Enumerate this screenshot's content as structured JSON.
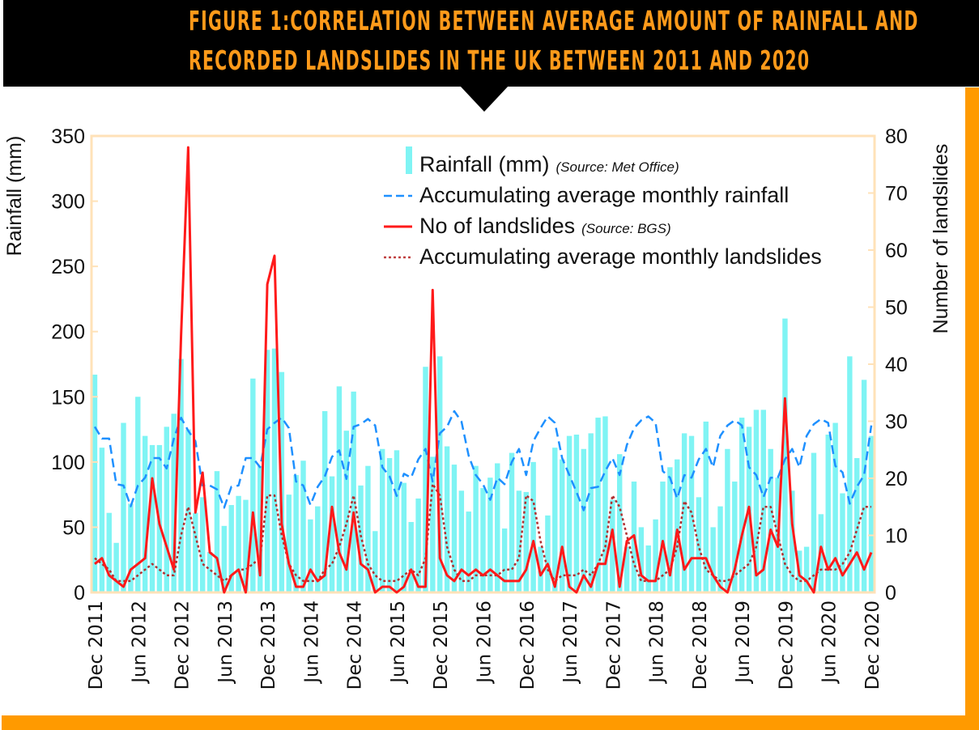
{
  "header": {
    "title_line1": "FIGURE 1:CORRELATION BETWEEN AVERAGE AMOUNT OF RAINFALL AND",
    "title_line2": "RECORDED LANDSLIDES IN THE UK BETWEEN 2011 AND 2020"
  },
  "colors": {
    "title_text": "#ff9a1a",
    "title_bg": "#000000",
    "accent_frame": "#ff9a00",
    "bars": "#7ff4f4",
    "avg_rainfall_line": "#1e90ff",
    "landslides_line": "#ff1a1a",
    "avg_landslides_line": "#b03030",
    "axis_frame": "#ffe2b8"
  },
  "chart_data": {
    "type": "bar+line",
    "title": "Figure 1: Correlation between average amount of rainfall and recorded landslides in the UK between 2011 and 2020",
    "xlabel": "",
    "ylabel": "Rainfall (mm)",
    "y2label": "Number of landslides",
    "ylim": [
      0,
      350
    ],
    "y2lim": [
      0,
      80
    ],
    "yticks": [
      "0",
      "50",
      "100",
      "150",
      "200",
      "250",
      "300",
      "350"
    ],
    "y2ticks": [
      "0",
      "10",
      "20",
      "30",
      "40",
      "50",
      "60",
      "70",
      "80"
    ],
    "xticks": [
      "Dec 2011",
      "Jun 2012",
      "Dec 2012",
      "Jun 2013",
      "Dec 2013",
      "Jun 2014",
      "Dec 2014",
      "Jun 2015",
      "Dec 2015",
      "Jun 2016",
      "Dec 2016",
      "Jun 2017",
      "Dec 2017",
      "Jun 2018",
      "Dec 2018",
      "Jun 2019",
      "Dec 2019",
      "Jun 2020",
      "Dec 2020"
    ],
    "x_start": "Dec 2011",
    "x_end": "Dec 2020",
    "frequency": "monthly",
    "grid": false,
    "legend_position": "top-center",
    "legend": [
      {
        "label": "Rainfall (mm)",
        "source": "(Source: Met Office)",
        "style": "bar"
      },
      {
        "label": "Accumulating average monthly rainfall",
        "source": "",
        "style": "dashed"
      },
      {
        "label": "No of landslides",
        "source": "(Source: BGS)",
        "style": "solid"
      },
      {
        "label": "Accumulating average monthly landslides",
        "source": "",
        "style": "dotted"
      }
    ],
    "series": [
      {
        "name": "Rainfall (mm)",
        "axis": "left",
        "values": [
          167,
          111,
          61,
          38,
          130,
          68,
          150,
          120,
          113,
          113,
          127,
          137,
          179,
          125,
          61,
          73,
          31,
          93,
          51,
          67,
          74,
          71,
          164,
          97,
          186,
          187,
          169,
          75,
          90,
          101,
          56,
          66,
          139,
          89,
          158,
          124,
          154,
          82,
          97,
          47,
          110,
          103,
          109,
          84,
          54,
          72,
          173,
          104,
          181,
          112,
          98,
          78,
          62,
          97,
          80,
          88,
          99,
          49,
          107,
          78,
          77,
          100,
          35,
          59,
          111,
          102,
          120,
          121,
          110,
          122,
          134,
          135,
          71,
          106,
          35,
          85,
          50,
          36,
          56,
          85,
          96,
          102,
          122,
          120,
          73,
          131,
          50,
          66,
          110,
          85,
          134,
          127,
          140,
          140,
          110,
          88,
          210,
          78,
          32,
          35,
          107,
          60,
          121,
          130,
          76,
          181,
          103,
          163,
          120
        ]
      },
      {
        "name": "Accumulating average monthly rainfall",
        "axis": "left",
        "values": [
          127,
          118,
          118,
          83,
          82,
          66,
          82,
          88,
          103,
          103,
          95,
          118,
          134,
          124,
          116,
          82,
          82,
          79,
          65,
          81,
          82,
          103,
          103,
          96,
          125,
          130,
          134,
          126,
          85,
          82,
          67,
          81,
          89,
          104,
          109,
          87,
          127,
          129,
          133,
          128,
          96,
          89,
          74,
          91,
          88,
          102,
          110,
          85,
          122,
          127,
          139,
          131,
          105,
          90,
          83,
          71,
          88,
          83,
          100,
          110,
          90,
          116,
          126,
          135,
          130,
          103,
          90,
          77,
          63,
          80,
          81,
          93,
          103,
          90,
          113,
          126,
          132,
          135,
          130,
          93,
          88,
          72,
          90,
          88,
          102,
          110,
          96,
          120,
          128,
          132,
          128,
          96,
          90,
          73,
          88,
          88,
          102,
          110,
          96,
          120,
          129,
          133,
          130,
          97,
          92,
          68,
          81,
          90,
          128
        ]
      },
      {
        "name": "No of landslides",
        "axis": "right",
        "values": [
          5,
          6,
          3,
          2,
          1,
          4,
          5,
          6,
          20,
          12,
          8,
          4,
          45,
          78,
          14,
          21,
          7,
          6,
          0,
          3,
          4,
          0,
          14,
          3,
          54,
          59,
          12,
          5,
          1,
          1,
          4,
          2,
          3,
          15,
          7,
          4,
          14,
          5,
          4,
          0,
          1,
          1,
          0,
          1,
          4,
          1,
          1,
          53,
          6,
          3,
          2,
          4,
          3,
          4,
          3,
          4,
          3,
          2,
          2,
          2,
          4,
          9,
          3,
          5,
          1,
          8,
          1,
          0,
          3,
          1,
          5,
          5,
          11,
          1,
          9,
          10,
          3,
          2,
          2,
          9,
          3,
          11,
          4,
          6,
          6,
          6,
          3,
          1,
          0,
          4,
          10,
          15,
          3,
          4,
          11,
          8,
          34,
          12,
          3,
          2,
          0,
          8,
          4,
          6,
          3,
          5,
          7,
          4,
          7
        ]
      },
      {
        "name": "Accumulating average monthly landslides",
        "axis": "right",
        "values": [
          6,
          5,
          4,
          2,
          2,
          2,
          3,
          4,
          5,
          4,
          3,
          3,
          10,
          15,
          10,
          5,
          4,
          3,
          2,
          3,
          4,
          4,
          5,
          6,
          17,
          17,
          10,
          5,
          3,
          2,
          2,
          2,
          4,
          5,
          8,
          12,
          17,
          10,
          5,
          3,
          2,
          2,
          2,
          3,
          4,
          3,
          6,
          19,
          17,
          8,
          4,
          2,
          2,
          3,
          3,
          3,
          3,
          4,
          4,
          6,
          17,
          16,
          9,
          4,
          2,
          3,
          3,
          3,
          4,
          3,
          5,
          8,
          17,
          15,
          10,
          5,
          2,
          2,
          2,
          3,
          4,
          8,
          16,
          14,
          8,
          4,
          3,
          2,
          2,
          3,
          4,
          5,
          8,
          15,
          15,
          10,
          5,
          3,
          2,
          2,
          3,
          4,
          4,
          4,
          5,
          7,
          11,
          15,
          15
        ]
      }
    ]
  }
}
